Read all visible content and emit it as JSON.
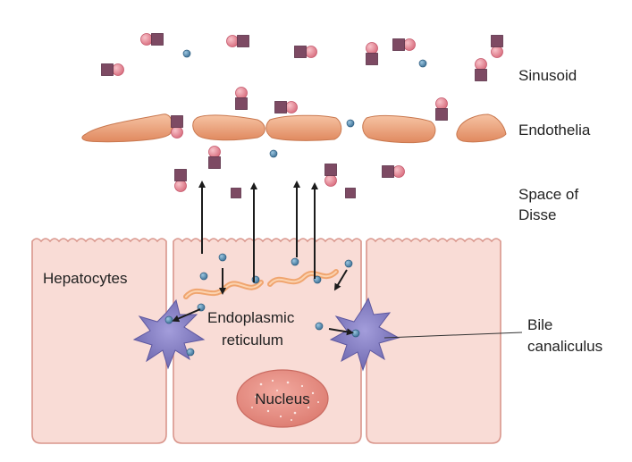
{
  "figure": {
    "labels": {
      "sinusoid": "Sinusoid",
      "endothelia": "Endothelia",
      "space_of_disse_line1": "Space of",
      "space_of_disse_line2": "Disse",
      "hepatocytes": "Hepatocytes",
      "er_line1": "Endoplasmic",
      "er_line2": "reticulum",
      "nucleus": "Nucleus",
      "bile_line1": "Bile",
      "bile_line2": "canaliculus"
    },
    "colors": {
      "cell_fill": "#f9dcd6",
      "cell_stroke": "#d9968c",
      "endothelium": "#eea37f",
      "nucleus_fill": "#e98f85",
      "canaliculus": "#7f78b8",
      "square_molecule": "#7d4a63",
      "circle_molecule": "#ec8f9d",
      "small_dot": "#4f86ad",
      "arrow": "#1c1c1c"
    },
    "icons": {
      "bound_pair": "square-circle-molecule-icon",
      "free_molecule": "blue-dot-icon"
    }
  }
}
